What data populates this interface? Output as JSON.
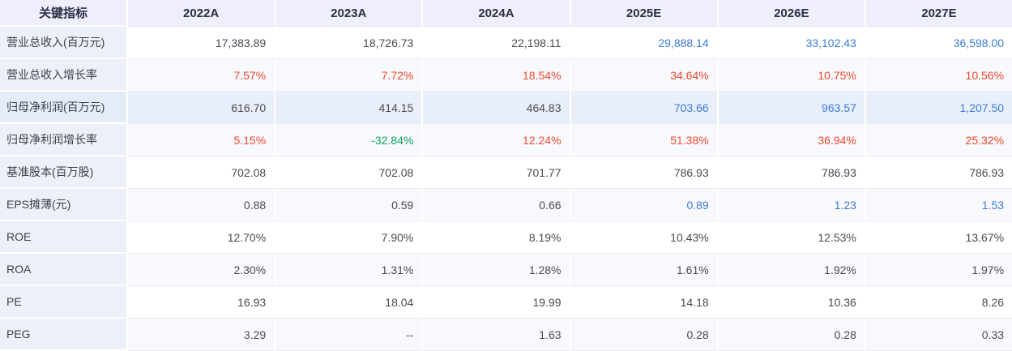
{
  "table": {
    "header": {
      "indicator_label": "关键指标",
      "columns": [
        "2022A",
        "2023A",
        "2024A",
        "2025E",
        "2026E",
        "2027E"
      ]
    },
    "rows": [
      {
        "label": "营业总收入(百万元)",
        "cells": [
          {
            "v": "17,383.89",
            "c": "dark"
          },
          {
            "v": "18,726.73",
            "c": "dark"
          },
          {
            "v": "22,198.11",
            "c": "dark"
          },
          {
            "v": "29,888.14",
            "c": "blue"
          },
          {
            "v": "33,102.43",
            "c": "blue"
          },
          {
            "v": "36,598.00",
            "c": "blue"
          }
        ]
      },
      {
        "label": "营业总收入增长率",
        "cells": [
          {
            "v": "7.57%",
            "c": "red"
          },
          {
            "v": "7.72%",
            "c": "red"
          },
          {
            "v": "18.54%",
            "c": "red"
          },
          {
            "v": "34.64%",
            "c": "red"
          },
          {
            "v": "10.75%",
            "c": "red"
          },
          {
            "v": "10.56%",
            "c": "red"
          }
        ]
      },
      {
        "label": "归母净利润(百万元)",
        "hover": true,
        "cells": [
          {
            "v": "616.70",
            "c": "dark"
          },
          {
            "v": "414.15",
            "c": "dark"
          },
          {
            "v": "464.83",
            "c": "dark"
          },
          {
            "v": "703.66",
            "c": "blue"
          },
          {
            "v": "963.57",
            "c": "blue"
          },
          {
            "v": "1,207.50",
            "c": "blue"
          }
        ]
      },
      {
        "label": "归母净利润增长率",
        "cells": [
          {
            "v": "5.15%",
            "c": "red"
          },
          {
            "v": "-32.84%",
            "c": "green"
          },
          {
            "v": "12.24%",
            "c": "red"
          },
          {
            "v": "51.38%",
            "c": "red"
          },
          {
            "v": "36.94%",
            "c": "red"
          },
          {
            "v": "25.32%",
            "c": "red"
          }
        ]
      },
      {
        "label": "基准股本(百万股)",
        "cells": [
          {
            "v": "702.08",
            "c": "dark"
          },
          {
            "v": "702.08",
            "c": "dark"
          },
          {
            "v": "701.77",
            "c": "dark"
          },
          {
            "v": "786.93",
            "c": "dark"
          },
          {
            "v": "786.93",
            "c": "dark"
          },
          {
            "v": "786.93",
            "c": "dark"
          }
        ]
      },
      {
        "label": "EPS摊薄(元)",
        "cells": [
          {
            "v": "0.88",
            "c": "dark"
          },
          {
            "v": "0.59",
            "c": "dark"
          },
          {
            "v": "0.66",
            "c": "dark"
          },
          {
            "v": "0.89",
            "c": "blue"
          },
          {
            "v": "1.23",
            "c": "blue"
          },
          {
            "v": "1.53",
            "c": "blue"
          }
        ]
      },
      {
        "label": "ROE",
        "cells": [
          {
            "v": "12.70%",
            "c": "dark"
          },
          {
            "v": "7.90%",
            "c": "dark"
          },
          {
            "v": "8.19%",
            "c": "dark"
          },
          {
            "v": "10.43%",
            "c": "dark"
          },
          {
            "v": "12.53%",
            "c": "dark"
          },
          {
            "v": "13.67%",
            "c": "dark"
          }
        ]
      },
      {
        "label": "ROA",
        "cells": [
          {
            "v": "2.30%",
            "c": "dark"
          },
          {
            "v": "1.31%",
            "c": "dark"
          },
          {
            "v": "1.28%",
            "c": "dark"
          },
          {
            "v": "1.61%",
            "c": "dark"
          },
          {
            "v": "1.92%",
            "c": "dark"
          },
          {
            "v": "1.97%",
            "c": "dark"
          }
        ]
      },
      {
        "label": "PE",
        "cells": [
          {
            "v": "16.93",
            "c": "dark"
          },
          {
            "v": "18.04",
            "c": "dark"
          },
          {
            "v": "19.99",
            "c": "dark"
          },
          {
            "v": "14.18",
            "c": "dark"
          },
          {
            "v": "10.36",
            "c": "dark"
          },
          {
            "v": "8.26",
            "c": "dark"
          }
        ]
      },
      {
        "label": "PEG",
        "cells": [
          {
            "v": "3.29",
            "c": "dark"
          },
          {
            "v": "--",
            "c": "dark"
          },
          {
            "v": "1.63",
            "c": "dark"
          },
          {
            "v": "0.28",
            "c": "dark"
          },
          {
            "v": "0.28",
            "c": "dark"
          },
          {
            "v": "0.33",
            "c": "dark"
          }
        ]
      }
    ]
  },
  "colors": {
    "header_bg": "#eeeffa",
    "label_col_bg": "#eef0f9",
    "even_row_bg": "#f8f9fc",
    "hover_row_bg": "#e9eff9",
    "header_text": "#2b2f45",
    "value_dark": "#4a4b52",
    "estimate_blue": "#3a7cd6",
    "growth_red": "#f0472d",
    "negative_green": "#0ca35f"
  }
}
